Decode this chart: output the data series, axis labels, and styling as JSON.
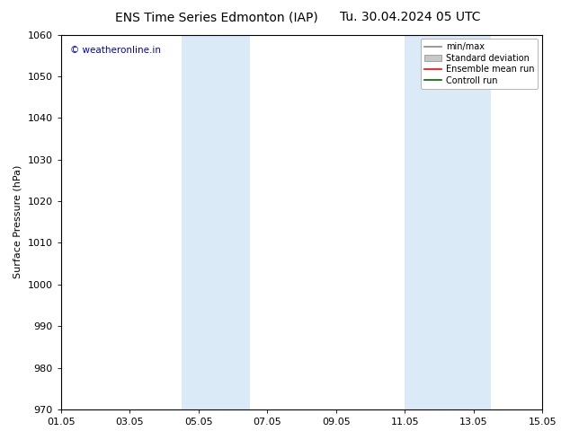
{
  "title": "ENS Time Series Edmonton (IAP)",
  "subtitle": "Tu. 30.04.2024 05 UTC",
  "ylabel": "Surface Pressure (hPa)",
  "ylim": [
    970,
    1060
  ],
  "yticks": [
    970,
    980,
    990,
    1000,
    1010,
    1020,
    1030,
    1040,
    1050,
    1060
  ],
  "xtick_labels": [
    "01.05",
    "03.05",
    "05.05",
    "07.05",
    "09.05",
    "11.05",
    "13.05",
    "15.05"
  ],
  "xtick_positions": [
    0,
    2,
    4,
    6,
    8,
    10,
    12,
    14
  ],
  "xlim": [
    0,
    14
  ],
  "shaded_regions": [
    {
      "xstart": 3.5,
      "xend": 5.5
    },
    {
      "xstart": 10.0,
      "xend": 12.5
    }
  ],
  "shaded_color": "#daeaf7",
  "watermark": "© weatheronline.in",
  "watermark_color": "#0000cc",
  "legend_items": [
    {
      "label": "min/max",
      "color": "#888888",
      "style": "line"
    },
    {
      "label": "Standard deviation",
      "color": "#c8c8c8",
      "style": "band"
    },
    {
      "label": "Ensemble mean run",
      "color": "#ff0000",
      "style": "line"
    },
    {
      "label": "Controll run",
      "color": "#006400",
      "style": "line"
    }
  ],
  "background_color": "#ffffff",
  "plot_bg_color": "#ffffff",
  "title_fontsize": 10,
  "ylabel_fontsize": 8,
  "tick_fontsize": 8,
  "watermark_fontsize": 7.5,
  "legend_fontsize": 7
}
